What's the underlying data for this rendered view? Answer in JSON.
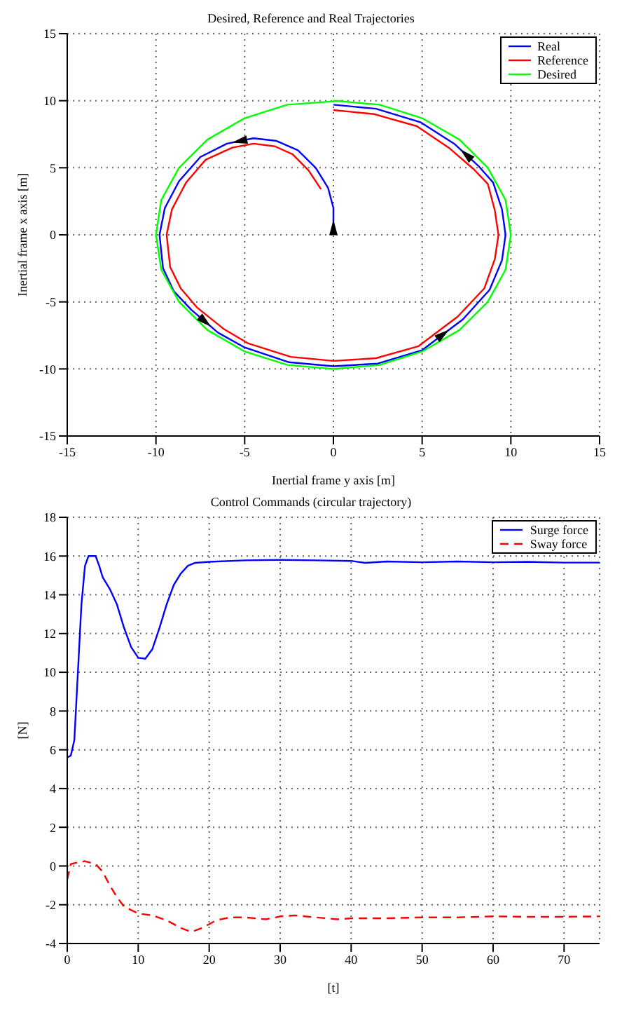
{
  "chart_data": [
    {
      "type": "line",
      "title": "Desired, Reference and Real Trajectories",
      "xlabel": "Inertial frame y axis [m]",
      "ylabel": "Inertial frame x axis [m]",
      "xlim": [
        -15,
        15
      ],
      "xticks": [
        -15,
        -10,
        -5,
        0,
        5,
        10,
        15
      ],
      "ylim": [
        -15,
        15
      ],
      "yticks": [
        -15,
        -10,
        -5,
        0,
        5,
        10,
        15
      ],
      "grid": true,
      "legend": "top right",
      "series": [
        {
          "name": "Real",
          "color": "#0000ff",
          "x": [
            0,
            0,
            0,
            -0.3,
            -1,
            -2,
            -3.2,
            -4.5,
            -6,
            -7.5,
            -8.7,
            -9.5,
            -9.8,
            -9.6,
            -9,
            -8,
            -6.5,
            -5,
            -2.5,
            0,
            2.5,
            5,
            7.3,
            8.8,
            9.5,
            9.7,
            9.5,
            9,
            8.2,
            6.8,
            4.9,
            2.4,
            0
          ],
          "values": [
            0,
            1,
            2,
            3.5,
            5,
            6.3,
            7,
            7.2,
            6.8,
            5.8,
            4,
            2,
            0,
            -2.5,
            -4.2,
            -5.6,
            -7.3,
            -8.4,
            -9.5,
            -9.8,
            -9.6,
            -8.6,
            -6.3,
            -4.1,
            -1.9,
            0,
            1.9,
            3.9,
            5.1,
            6.8,
            8.4,
            9.4,
            9.7
          ]
        },
        {
          "name": "Reference",
          "color": "#ff0000",
          "x": [
            null,
            null,
            null,
            -0.7,
            -1.4,
            -2.3,
            -3.3,
            -4.5,
            -5.7,
            -7.2,
            -8.3,
            -9.1,
            -9.4,
            -9.2,
            -8.6,
            -7.7,
            -6.2,
            -4.8,
            -2.4,
            0,
            2.4,
            4.8,
            7,
            8.5,
            9.1,
            9.3,
            9.1,
            8.7,
            7.9,
            6.5,
            4.7,
            2.3,
            0
          ],
          "values": [
            null,
            null,
            null,
            3.4,
            4.8,
            6,
            6.6,
            6.8,
            6.5,
            5.6,
            3.9,
            1.9,
            0,
            -2.4,
            -4,
            -5.4,
            -7,
            -8.1,
            -9.1,
            -9.4,
            -9.2,
            -8.3,
            -6.1,
            -4,
            -1.8,
            0,
            1.8,
            3.8,
            4.9,
            6.5,
            8.1,
            9,
            9.3
          ]
        },
        {
          "name": "Desired",
          "color": "#00ff00",
          "x": [
            0.5,
            -2.6,
            -5,
            -7.1,
            -8.7,
            -9.7,
            -10,
            -9.7,
            -8.7,
            -7.1,
            -5,
            -2.6,
            0,
            2.6,
            5,
            7.1,
            8.7,
            9.7,
            10,
            9.7,
            8.7,
            7.1,
            5,
            2.6,
            0
          ],
          "values": [
            10,
            9.7,
            8.7,
            7.1,
            5,
            2.6,
            0,
            -2.6,
            -5,
            -7.1,
            -8.7,
            -9.7,
            -10,
            -9.7,
            -8.7,
            -7.1,
            -5,
            -2.6,
            0,
            2.6,
            5,
            7.1,
            8.7,
            9.7,
            10
          ]
        }
      ]
    },
    {
      "type": "line",
      "title": "Control Commands (circular trajectory)",
      "xlabel": "[t]",
      "ylabel": "[N]",
      "xlim": [
        0,
        75
      ],
      "xticks": [
        0,
        10,
        20,
        30,
        40,
        50,
        60,
        70
      ],
      "ylim": [
        -4,
        18
      ],
      "yticks": [
        -4,
        -2,
        0,
        2,
        4,
        6,
        8,
        10,
        12,
        14,
        16,
        18
      ],
      "grid": true,
      "legend": "top right",
      "series": [
        {
          "name": "Surge force",
          "color": "#0000ff",
          "line_style": "solid",
          "x": [
            0,
            0.5,
            1,
            1.5,
            2,
            2.5,
            3,
            4,
            4.5,
            5,
            6,
            7,
            8,
            9,
            10,
            11,
            12,
            13,
            14,
            15,
            16,
            17,
            18,
            20,
            25,
            30,
            35,
            40,
            42,
            45,
            50,
            55,
            60,
            65,
            70,
            75
          ],
          "values": [
            5.6,
            5.7,
            6.5,
            10,
            13.5,
            15.5,
            16,
            16,
            15.5,
            14.9,
            14.3,
            13.5,
            12.3,
            11.3,
            10.75,
            10.7,
            11.2,
            12.3,
            13.5,
            14.5,
            15.1,
            15.5,
            15.65,
            15.7,
            15.78,
            15.8,
            15.78,
            15.75,
            15.65,
            15.72,
            15.68,
            15.72,
            15.68,
            15.7,
            15.66,
            15.66
          ]
        },
        {
          "name": "Sway force",
          "color": "#ff0000",
          "line_style": "dashed",
          "x": [
            0,
            0.5,
            1,
            2.5,
            4,
            5,
            6,
            7,
            8,
            10,
            12,
            14,
            16,
            17.5,
            19,
            21,
            23,
            25,
            28,
            30,
            32,
            35,
            38,
            40,
            45,
            50,
            55,
            60,
            65,
            70,
            75
          ],
          "values": [
            -0.7,
            0.1,
            0.15,
            0.25,
            0.1,
            -0.3,
            -1,
            -1.6,
            -2.1,
            -2.45,
            -2.55,
            -2.8,
            -3.2,
            -3.4,
            -3.2,
            -2.8,
            -2.65,
            -2.65,
            -2.75,
            -2.6,
            -2.55,
            -2.65,
            -2.75,
            -2.7,
            -2.7,
            -2.65,
            -2.65,
            -2.6,
            -2.62,
            -2.62,
            -2.6
          ]
        }
      ]
    }
  ]
}
